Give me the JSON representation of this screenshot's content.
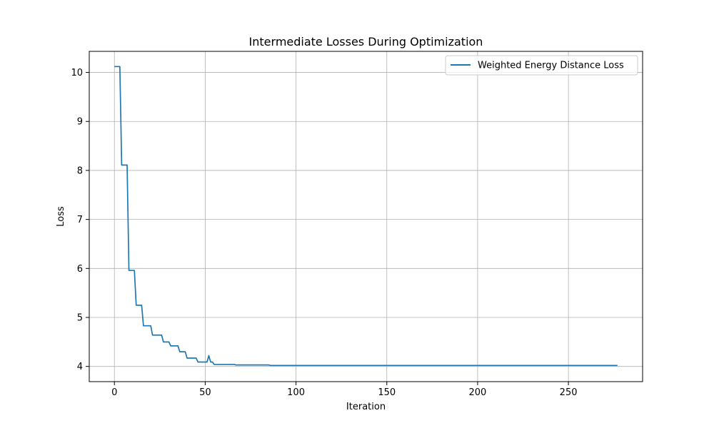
{
  "chart_data": {
    "type": "line",
    "title": "Intermediate Losses During Optimization",
    "xlabel": "Iteration",
    "ylabel": "Loss",
    "xlim": [
      -13.85,
      290.85
    ],
    "ylim": [
      3.69,
      10.43
    ],
    "xticks": [
      0,
      50,
      100,
      150,
      200,
      250
    ],
    "yticks": [
      4,
      5,
      6,
      7,
      8,
      9,
      10
    ],
    "grid": true,
    "legend_position": "upper-right",
    "series": [
      {
        "name": "Weighted Energy Distance Loss",
        "color": "#1f77b4",
        "x": [
          0,
          2,
          3,
          4,
          6,
          7,
          8,
          11,
          12,
          15,
          16,
          20,
          21,
          26,
          27,
          30,
          31,
          35,
          36,
          39,
          40,
          45,
          46,
          51,
          52,
          53,
          54,
          55,
          66,
          67,
          85,
          86,
          277
        ],
        "y": [
          10.12,
          10.12,
          10.12,
          8.11,
          8.11,
          8.11,
          5.96,
          5.96,
          5.25,
          5.25,
          4.83,
          4.83,
          4.64,
          4.64,
          4.5,
          4.5,
          4.42,
          4.42,
          4.3,
          4.3,
          4.17,
          4.17,
          4.09,
          4.09,
          4.22,
          4.09,
          4.09,
          4.04,
          4.04,
          4.03,
          4.03,
          4.02,
          4.02
        ]
      }
    ]
  }
}
